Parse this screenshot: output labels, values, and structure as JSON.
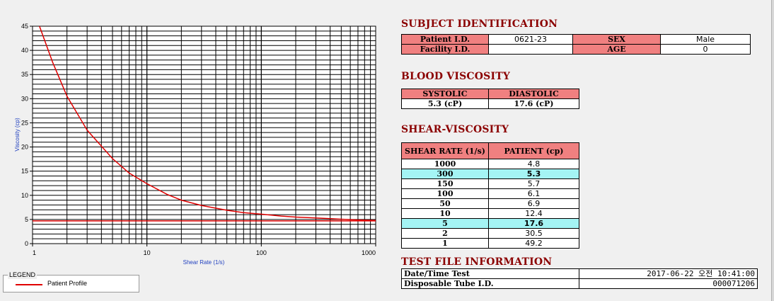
{
  "chart_data": {
    "type": "line",
    "xscale": "log",
    "xlim": [
      1,
      1000
    ],
    "ylim": [
      0,
      45
    ],
    "xlabel": "Shear Rate (1/s)",
    "ylabel": "Viscosity (cp)",
    "xticks": [
      1,
      10,
      100,
      1000
    ],
    "xtick_labels": [
      "1",
      "10",
      "100",
      "1000"
    ],
    "yticks": [
      0,
      5,
      10,
      15,
      20,
      25,
      30,
      35,
      40,
      45
    ],
    "ytick_labels": [
      "0",
      "5",
      "10",
      "15",
      "20",
      "25",
      "30",
      "35",
      "40",
      "45"
    ],
    "grid": true,
    "series": [
      {
        "name": "Patient Profile",
        "color": "#e00000",
        "x": [
          1.15,
          1.5,
          2,
          3,
          5,
          7,
          10,
          15,
          20,
          30,
          50,
          70,
          100,
          150,
          200,
          300,
          500,
          700,
          1000
        ],
        "y": [
          45,
          37.5,
          30.5,
          23.5,
          17.6,
          14.6,
          12.4,
          10.2,
          9.0,
          7.9,
          6.9,
          6.4,
          6.1,
          5.7,
          5.5,
          5.3,
          5.05,
          4.9,
          4.8
        ]
      },
      {
        "name": "",
        "color": "#e00000",
        "x": [
          1,
          1000
        ],
        "y": [
          4.7,
          4.7
        ]
      }
    ]
  },
  "legend": {
    "title": "LEGEND",
    "entries": [
      {
        "label": "Patient Profile",
        "color": "#e00000"
      }
    ]
  },
  "subject": {
    "title": "SUBJECT IDENTIFICATION",
    "patient_id_label": "Patient I.D.",
    "patient_id": "0621-23",
    "sex_label": "SEX",
    "sex": "Male",
    "facility_id_label": "Facility I.D.",
    "facility_id": "",
    "age_label": "AGE",
    "age": "0"
  },
  "blood_viscosity": {
    "title": "BLOOD VISCOSITY",
    "systolic_label": "SYSTOLIC",
    "diastolic_label": "DIASTOLIC",
    "systolic": "5.3 (cP)",
    "diastolic": "17.6 (cP)"
  },
  "shear_viscosity": {
    "title": "SHEAR-VISCOSITY",
    "col_rate": "SHEAR RATE (1/s)",
    "col_patient": "PATIENT (cp)",
    "rows": [
      {
        "rate": "1000",
        "value": "4.8",
        "highlight": false
      },
      {
        "rate": "300",
        "value": "5.3",
        "highlight": true
      },
      {
        "rate": "150",
        "value": "5.7",
        "highlight": false
      },
      {
        "rate": "100",
        "value": "6.1",
        "highlight": false
      },
      {
        "rate": "50",
        "value": "6.9",
        "highlight": false
      },
      {
        "rate": "10",
        "value": "12.4",
        "highlight": false
      },
      {
        "rate": "5",
        "value": "17.6",
        "highlight": true
      },
      {
        "rate": "2",
        "value": "30.5",
        "highlight": false
      },
      {
        "rate": "1",
        "value": "49.2",
        "highlight": false
      }
    ]
  },
  "test_file": {
    "title": "TEST FILE INFORMATION",
    "date_label": "Date/Time Test",
    "date_value": "2017-06-22  오전 10:41:00",
    "tube_label": "Disposable Tube I.D.",
    "tube_value": "000071206"
  }
}
